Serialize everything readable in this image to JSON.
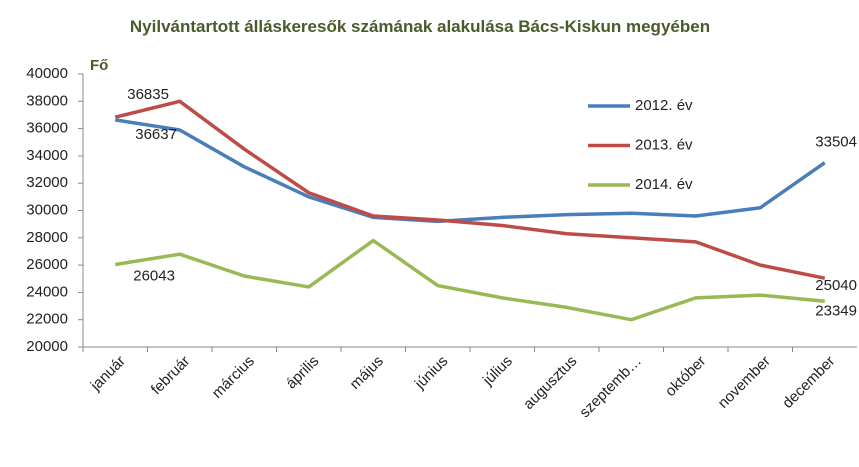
{
  "chart_data": {
    "type": "line",
    "title": "Nyilvántartott álláskeresők számának alakulása Bács-Kiskun megyében",
    "y_label": "Fő",
    "categories": [
      "január",
      "február",
      "március",
      "április",
      "május",
      "június",
      "július",
      "augusztus",
      "szeptemb…",
      "október",
      "november",
      "december"
    ],
    "series": [
      {
        "name": "2012. év",
        "color": "#4a7ebb",
        "values": [
          36637,
          35900,
          33200,
          31000,
          29500,
          29200,
          29500,
          29700,
          29800,
          29600,
          30200,
          33504
        ]
      },
      {
        "name": "2013. év",
        "color": "#be4b48",
        "values": [
          36835,
          38000,
          34500,
          31300,
          29600,
          29300,
          28900,
          28300,
          28000,
          27700,
          26000,
          25040
        ]
      },
      {
        "name": "2014. év",
        "color": "#98b954",
        "values": [
          26043,
          26800,
          25200,
          24400,
          27800,
          24500,
          23600,
          22900,
          22000,
          23600,
          23800,
          23349
        ]
      }
    ],
    "ylim": [
      20000,
      40000
    ],
    "yticks": [
      20000,
      22000,
      24000,
      26000,
      28000,
      30000,
      32000,
      34000,
      36000,
      38000,
      40000
    ],
    "grid": false
  }
}
